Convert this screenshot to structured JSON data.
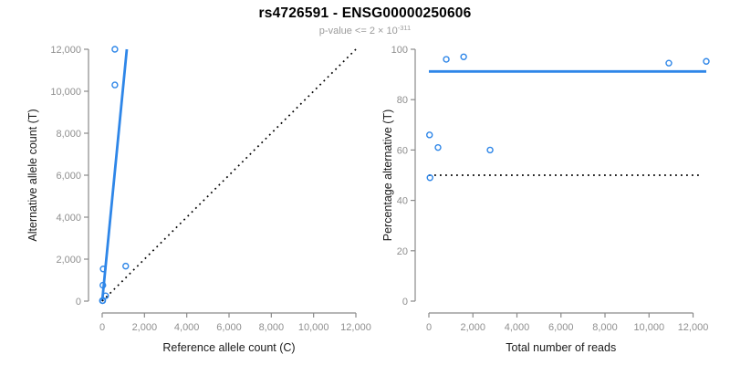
{
  "header": {
    "title": "rs4726591 - ENSG00000250606",
    "subtitle_prefix": "p-value <= 2 × 10",
    "subtitle_exponent": "-311"
  },
  "colors": {
    "accent_blue": "#2E86E8",
    "dotted_black": "#000000",
    "axis_line_gray": "#8a8a8a",
    "tick_label_gray": "#8f8f8f",
    "axis_title_color": "#1a1a1a",
    "subtitle_gray": "#9b9b9b",
    "background": "#ffffff"
  },
  "chart_data": [
    {
      "id": "allele-counts",
      "type": "scatter",
      "xlabel": "Reference allele count (C)",
      "ylabel": "Alternative allele count (T)",
      "xlim": [
        0,
        12000
      ],
      "ylim": [
        0,
        12000
      ],
      "xticks": [
        0,
        2000,
        4000,
        6000,
        8000,
        10000,
        12000
      ],
      "yticks": [
        0,
        2000,
        4000,
        6000,
        8000,
        10000,
        12000
      ],
      "grid": false,
      "legend": "none",
      "points": [
        {
          "x": 10,
          "y": 20
        },
        {
          "x": 26,
          "y": 25
        },
        {
          "x": 162,
          "y": 253
        },
        {
          "x": 32,
          "y": 758
        },
        {
          "x": 47,
          "y": 1533
        },
        {
          "x": 1112,
          "y": 1668
        },
        {
          "x": 600,
          "y": 10300
        },
        {
          "x": 600,
          "y": 12000
        }
      ],
      "lines": [
        {
          "name": "fit-line",
          "x1": 0,
          "y1": 0,
          "x2": 1164,
          "y2": 12000,
          "style": "solid",
          "color": "#2E86E8"
        },
        {
          "name": "identity-line",
          "x1": 0,
          "y1": 0,
          "x2": 12000,
          "y2": 12000,
          "style": "dotted",
          "color": "#000000"
        }
      ]
    },
    {
      "id": "percentage-alternative",
      "type": "scatter",
      "xlabel": "Total number of reads",
      "ylabel": "Percentage alternative (T)",
      "xlim": [
        0,
        12600
      ],
      "ylim": [
        0,
        100
      ],
      "xticks": [
        0,
        2000,
        4000,
        6000,
        8000,
        10000,
        12000
      ],
      "yticks": [
        0,
        20,
        40,
        60,
        80,
        100
      ],
      "grid": false,
      "legend": "none",
      "points": [
        {
          "x": 30,
          "y": 66
        },
        {
          "x": 51,
          "y": 49
        },
        {
          "x": 415,
          "y": 61
        },
        {
          "x": 790,
          "y": 96
        },
        {
          "x": 1580,
          "y": 97
        },
        {
          "x": 2780,
          "y": 60
        },
        {
          "x": 10900,
          "y": 94.5
        },
        {
          "x": 12600,
          "y": 95.2
        }
      ],
      "lines": [
        {
          "name": "mean-percentage-line",
          "x1": 0,
          "y1": 91.2,
          "x2": 12600,
          "y2": 91.2,
          "style": "solid",
          "color": "#2E86E8"
        },
        {
          "name": "fifty-percent-line",
          "x1": 0,
          "y1": 50,
          "x2": 12400,
          "y2": 50,
          "style": "dotted",
          "color": "#000000"
        }
      ]
    }
  ]
}
